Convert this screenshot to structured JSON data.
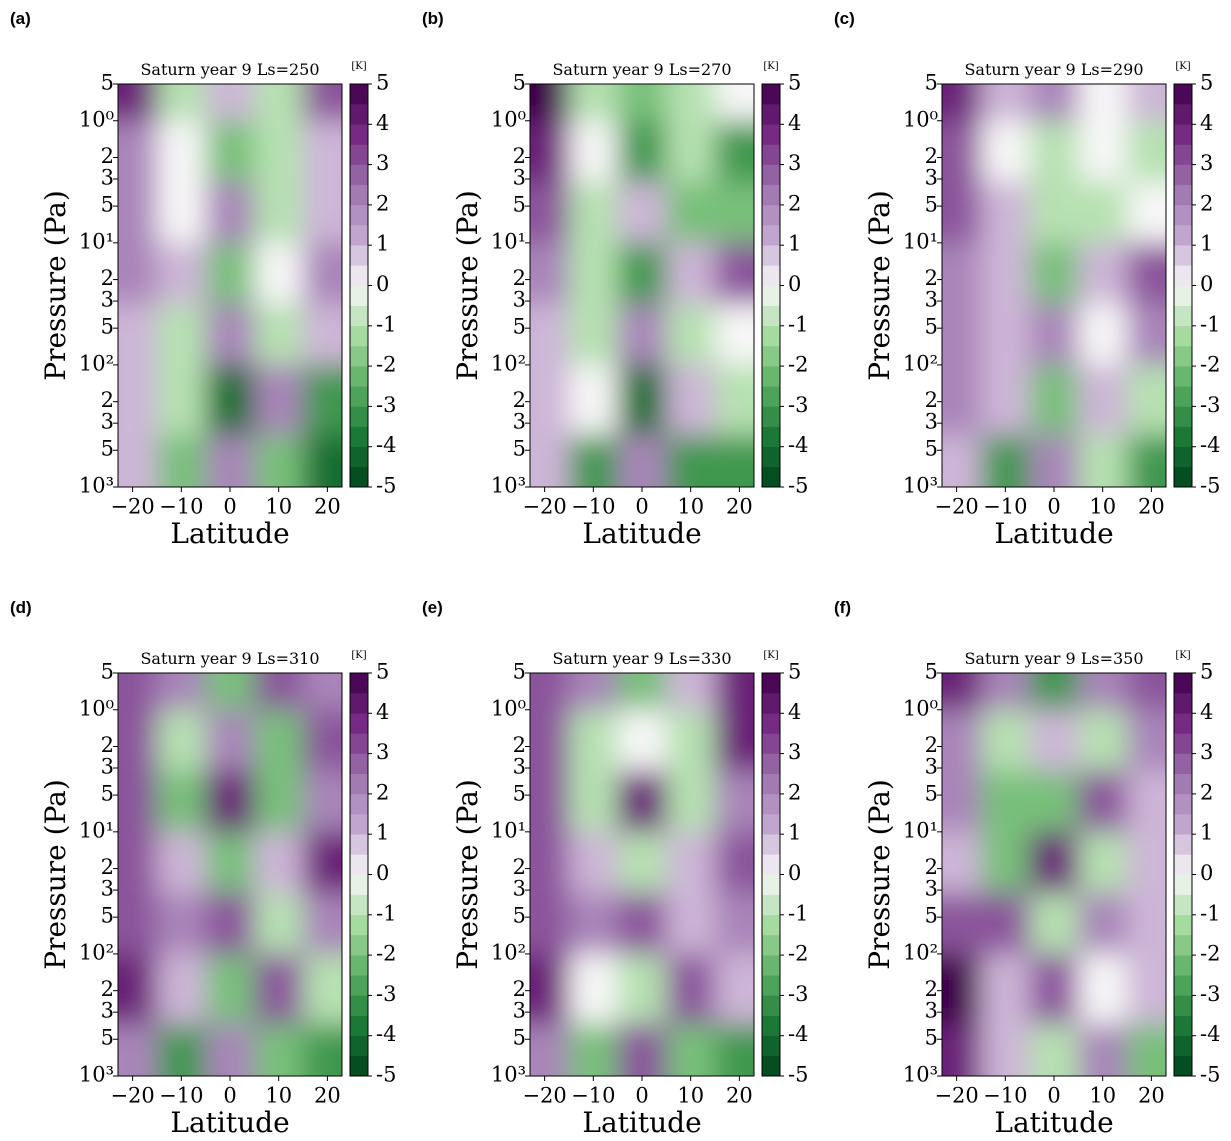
{
  "chart_data": [
    {
      "type": "contour",
      "panel_label": "(a)",
      "title": "Saturn year 9 Ls=250",
      "colorbar_label": "[K]",
      "xlabel": "Latitude",
      "ylabel": "Pressure (Pa)",
      "x": [
        -20,
        -10,
        0,
        10,
        20
      ],
      "y": [
        0.5,
        2,
        5,
        20,
        50,
        200,
        700
      ],
      "z": [
        [
          4,
          -1,
          1,
          -1,
          3
        ],
        [
          2,
          0,
          -2,
          -1,
          1
        ],
        [
          2,
          0,
          2,
          -1,
          1
        ],
        [
          2,
          1,
          -2,
          0,
          2
        ],
        [
          1,
          -1,
          2,
          -1,
          1
        ],
        [
          1,
          -1,
          -4,
          2,
          -3
        ],
        [
          1,
          -2,
          2,
          -2,
          -4
        ]
      ],
      "xlim": [
        -23,
        23
      ],
      "xticks": [
        -20,
        -10,
        0,
        10,
        20
      ],
      "ylim": [
        0.5,
        1000
      ],
      "yscale": "log",
      "y_inverted": true,
      "yticks": [
        {
          "value": 0.5,
          "label": "5"
        },
        {
          "value": 1,
          "label": "10⁰"
        },
        2,
        3,
        5,
        {
          "value": 10,
          "label": "10¹"
        },
        {
          "value": 20,
          "label": "2"
        },
        {
          "value": 30,
          "label": "3"
        },
        {
          "value": 50,
          "label": "5"
        },
        {
          "value": 100,
          "label": "10²"
        },
        {
          "value": 200,
          "label": "2"
        },
        {
          "value": 300,
          "label": "3"
        },
        {
          "value": 500,
          "label": "5"
        },
        {
          "value": 1000,
          "label": "10³"
        }
      ],
      "clim": [
        -5,
        5
      ],
      "cticks": [
        5,
        4,
        3,
        2,
        1,
        0,
        -1,
        -2,
        -3,
        -4,
        -5
      ],
      "colors": [
        "#00441b",
        "#1b7837",
        "#5aae61",
        "#a6dba0",
        "#f7f7f7",
        "#c2a5cf",
        "#9970ab",
        "#762a83",
        "#40004b"
      ]
    },
    {
      "type": "contour",
      "panel_label": "(b)",
      "title": "Saturn year 9 Ls=270",
      "colorbar_label": "[K]",
      "xlabel": "Latitude",
      "ylabel": "Pressure (Pa)",
      "x": [
        -20,
        -10,
        0,
        10,
        20
      ],
      "y": [
        0.5,
        2,
        5,
        20,
        50,
        200,
        700
      ],
      "z": [
        [
          5,
          -1,
          -2,
          -1,
          0
        ],
        [
          4,
          0,
          -3,
          -1,
          -3
        ],
        [
          3,
          -1,
          1,
          -2,
          -2
        ],
        [
          2,
          -1,
          -3,
          1,
          3
        ],
        [
          1,
          -1,
          2,
          -1,
          0
        ],
        [
          1,
          0,
          -4,
          1,
          -1
        ],
        [
          1,
          -3,
          2,
          -3,
          -3
        ]
      ],
      "xlim": [
        -23,
        23
      ],
      "xticks": [
        -20,
        -10,
        0,
        10,
        20
      ],
      "ylim": [
        0.5,
        1000
      ],
      "yscale": "log",
      "y_inverted": true,
      "yticks": [
        {
          "value": 0.5,
          "label": "5"
        },
        {
          "value": 1,
          "label": "10⁰"
        },
        2,
        3,
        5,
        {
          "value": 10,
          "label": "10¹"
        },
        {
          "value": 20,
          "label": "2"
        },
        {
          "value": 30,
          "label": "3"
        },
        {
          "value": 50,
          "label": "5"
        },
        {
          "value": 100,
          "label": "10²"
        },
        {
          "value": 200,
          "label": "2"
        },
        {
          "value": 300,
          "label": "3"
        },
        {
          "value": 500,
          "label": "5"
        },
        {
          "value": 1000,
          "label": "10³"
        }
      ],
      "clim": [
        -5,
        5
      ],
      "cticks": [
        5,
        4,
        3,
        2,
        1,
        0,
        -1,
        -2,
        -3,
        -4,
        -5
      ],
      "colors": [
        "#00441b",
        "#1b7837",
        "#5aae61",
        "#a6dba0",
        "#f7f7f7",
        "#c2a5cf",
        "#9970ab",
        "#762a83",
        "#40004b"
      ]
    },
    {
      "type": "contour",
      "panel_label": "(c)",
      "title": "Saturn year 9 Ls=290",
      "colorbar_label": "[K]",
      "xlabel": "Latitude",
      "ylabel": "Pressure (Pa)",
      "x": [
        -20,
        -10,
        0,
        10,
        20
      ],
      "y": [
        0.5,
        2,
        5,
        20,
        50,
        200,
        700
      ],
      "z": [
        [
          4,
          1,
          2,
          0,
          1
        ],
        [
          3,
          0,
          -1,
          0,
          -1
        ],
        [
          3,
          1,
          -1,
          -1,
          0
        ],
        [
          2,
          1,
          -2,
          1,
          3
        ],
        [
          2,
          1,
          2,
          0,
          2
        ],
        [
          2,
          1,
          -2,
          1,
          -1
        ],
        [
          1,
          -3,
          2,
          -1,
          -3
        ]
      ],
      "xlim": [
        -23,
        23
      ],
      "xticks": [
        -20,
        -10,
        0,
        10,
        20
      ],
      "ylim": [
        0.5,
        1000
      ],
      "yscale": "log",
      "y_inverted": true,
      "yticks": [
        {
          "value": 0.5,
          "label": "5"
        },
        {
          "value": 1,
          "label": "10⁰"
        },
        2,
        3,
        5,
        {
          "value": 10,
          "label": "10¹"
        },
        {
          "value": 20,
          "label": "2"
        },
        {
          "value": 30,
          "label": "3"
        },
        {
          "value": 50,
          "label": "5"
        },
        {
          "value": 100,
          "label": "10²"
        },
        {
          "value": 200,
          "label": "2"
        },
        {
          "value": 300,
          "label": "3"
        },
        {
          "value": 500,
          "label": "5"
        },
        {
          "value": 1000,
          "label": "10³"
        }
      ],
      "clim": [
        -5,
        5
      ],
      "cticks": [
        5,
        4,
        3,
        2,
        1,
        0,
        -1,
        -2,
        -3,
        -4,
        -5
      ],
      "colors": [
        "#00441b",
        "#1b7837",
        "#5aae61",
        "#a6dba0",
        "#f7f7f7",
        "#c2a5cf",
        "#9970ab",
        "#762a83",
        "#40004b"
      ]
    },
    {
      "type": "contour",
      "panel_label": "(d)",
      "title": "Saturn year 9 Ls=310",
      "colorbar_label": "[K]",
      "xlabel": "Latitude",
      "ylabel": "Pressure (Pa)",
      "x": [
        -20,
        -10,
        0,
        10,
        20
      ],
      "y": [
        0.5,
        2,
        5,
        20,
        50,
        200,
        700
      ],
      "z": [
        [
          3,
          2,
          -2,
          3,
          2
        ],
        [
          3,
          -1,
          2,
          -2,
          3
        ],
        [
          3,
          -2,
          4,
          -2,
          2
        ],
        [
          3,
          1,
          -2,
          1,
          4
        ],
        [
          3,
          2,
          3,
          -1,
          2
        ],
        [
          4,
          1,
          -2,
          3,
          -1
        ],
        [
          2,
          -3,
          2,
          -2,
          -3
        ]
      ],
      "xlim": [
        -23,
        23
      ],
      "xticks": [
        -20,
        -10,
        0,
        10,
        20
      ],
      "ylim": [
        0.5,
        1000
      ],
      "yscale": "log",
      "y_inverted": true,
      "yticks": [
        {
          "value": 0.5,
          "label": "5"
        },
        {
          "value": 1,
          "label": "10⁰"
        },
        2,
        3,
        5,
        {
          "value": 10,
          "label": "10¹"
        },
        {
          "value": 20,
          "label": "2"
        },
        {
          "value": 30,
          "label": "3"
        },
        {
          "value": 50,
          "label": "5"
        },
        {
          "value": 100,
          "label": "10²"
        },
        {
          "value": 200,
          "label": "2"
        },
        {
          "value": 300,
          "label": "3"
        },
        {
          "value": 500,
          "label": "5"
        },
        {
          "value": 1000,
          "label": "10³"
        }
      ],
      "clim": [
        -5,
        5
      ],
      "cticks": [
        5,
        4,
        3,
        2,
        1,
        0,
        -1,
        -2,
        -3,
        -4,
        -5
      ],
      "colors": [
        "#00441b",
        "#1b7837",
        "#5aae61",
        "#a6dba0",
        "#f7f7f7",
        "#c2a5cf",
        "#9970ab",
        "#762a83",
        "#40004b"
      ]
    },
    {
      "type": "contour",
      "panel_label": "(e)",
      "title": "Saturn year 9 Ls=330",
      "colorbar_label": "[K]",
      "xlabel": "Latitude",
      "ylabel": "Pressure (Pa)",
      "x": [
        -20,
        -10,
        0,
        10,
        20
      ],
      "y": [
        0.5,
        2,
        5,
        20,
        50,
        200,
        700
      ],
      "z": [
        [
          3,
          2,
          -2,
          1,
          4
        ],
        [
          3,
          -1,
          0,
          -1,
          4
        ],
        [
          3,
          -1,
          4,
          -1,
          2
        ],
        [
          3,
          1,
          -1,
          1,
          3
        ],
        [
          3,
          2,
          3,
          1,
          2
        ],
        [
          4,
          0,
          -1,
          3,
          1
        ],
        [
          2,
          -2,
          3,
          -2,
          -3
        ]
      ],
      "xlim": [
        -23,
        23
      ],
      "xticks": [
        -20,
        -10,
        0,
        10,
        20
      ],
      "ylim": [
        0.5,
        1000
      ],
      "yscale": "log",
      "y_inverted": true,
      "yticks": [
        {
          "value": 0.5,
          "label": "5"
        },
        {
          "value": 1,
          "label": "10⁰"
        },
        2,
        3,
        5,
        {
          "value": 10,
          "label": "10¹"
        },
        {
          "value": 20,
          "label": "2"
        },
        {
          "value": 30,
          "label": "3"
        },
        {
          "value": 50,
          "label": "5"
        },
        {
          "value": 100,
          "label": "10²"
        },
        {
          "value": 200,
          "label": "2"
        },
        {
          "value": 300,
          "label": "3"
        },
        {
          "value": 500,
          "label": "5"
        },
        {
          "value": 1000,
          "label": "10³"
        }
      ],
      "clim": [
        -5,
        5
      ],
      "cticks": [
        5,
        4,
        3,
        2,
        1,
        0,
        -1,
        -2,
        -3,
        -4,
        -5
      ],
      "colors": [
        "#00441b",
        "#1b7837",
        "#5aae61",
        "#a6dba0",
        "#f7f7f7",
        "#c2a5cf",
        "#9970ab",
        "#762a83",
        "#40004b"
      ]
    },
    {
      "type": "contour",
      "panel_label": "(f)",
      "title": "Saturn year 9 Ls=350",
      "colorbar_label": "[K]",
      "xlabel": "Latitude",
      "ylabel": "Pressure (Pa)",
      "x": [
        -20,
        -10,
        0,
        10,
        20
      ],
      "y": [
        0.5,
        2,
        5,
        20,
        50,
        200,
        700
      ],
      "z": [
        [
          4,
          2,
          -3,
          2,
          3
        ],
        [
          2,
          -1,
          1,
          -1,
          2
        ],
        [
          2,
          -2,
          -2,
          3,
          1
        ],
        [
          1,
          -2,
          4,
          -1,
          1
        ],
        [
          3,
          3,
          -1,
          2,
          1
        ],
        [
          5,
          1,
          3,
          0,
          1
        ],
        [
          4,
          1,
          -1,
          2,
          -2
        ]
      ],
      "xlim": [
        -23,
        23
      ],
      "xticks": [
        -20,
        -10,
        0,
        10,
        20
      ],
      "ylim": [
        0.5,
        1000
      ],
      "yscale": "log",
      "y_inverted": true,
      "yticks": [
        {
          "value": 0.5,
          "label": "5"
        },
        {
          "value": 1,
          "label": "10⁰"
        },
        2,
        3,
        5,
        {
          "value": 10,
          "label": "10¹"
        },
        {
          "value": 20,
          "label": "2"
        },
        {
          "value": 30,
          "label": "3"
        },
        {
          "value": 50,
          "label": "5"
        },
        {
          "value": 100,
          "label": "10²"
        },
        {
          "value": 200,
          "label": "2"
        },
        {
          "value": 300,
          "label": "3"
        },
        {
          "value": 500,
          "label": "5"
        },
        {
          "value": 1000,
          "label": "10³"
        }
      ],
      "clim": [
        -5,
        5
      ],
      "cticks": [
        5,
        4,
        3,
        2,
        1,
        0,
        -1,
        -2,
        -3,
        -4,
        -5
      ],
      "colors": [
        "#00441b",
        "#1b7837",
        "#5aae61",
        "#a6dba0",
        "#f7f7f7",
        "#c2a5cf",
        "#9970ab",
        "#762a83",
        "#40004b"
      ]
    }
  ]
}
